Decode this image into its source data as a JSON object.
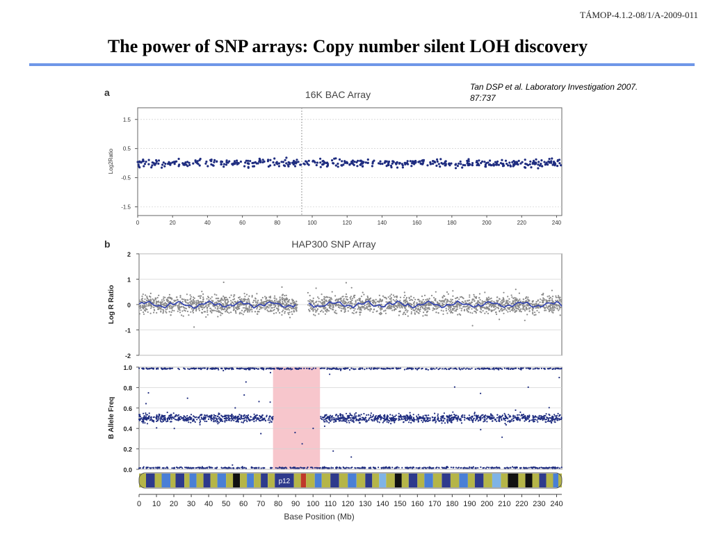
{
  "header": {
    "slide_id": "TÁMOP-4.1.2-08/1/A-2009-011",
    "title": "The power of SNP arrays: Copy number silent LOH discovery"
  },
  "citation": {
    "line1": "Tan DSP et al. Laboratory Investigation 2007.",
    "line2": "87:737"
  },
  "colors": {
    "title_rule": "#6f97e8",
    "points_blue": "#1f2d80",
    "points_gray": "#8a8a8a",
    "trend_blue": "#2e3fb0",
    "loh_highlight": "#f7c6cc"
  },
  "chart_data": [
    {
      "panel": "a",
      "type": "scatter",
      "title": "16K BAC Array",
      "ylabel": "Log2Ratio",
      "xlabel": "",
      "xlim": [
        0,
        243
      ],
      "ylim": [
        -1.8,
        1.9
      ],
      "xticks": [
        0,
        20,
        40,
        60,
        80,
        100,
        120,
        140,
        160,
        180,
        200,
        220,
        240
      ],
      "yticks": [
        1.5,
        0.5,
        -0.5,
        -1.5
      ],
      "ytick_labels": [
        "1.5",
        "0.5",
        "-0.5",
        "-1.5"
      ],
      "grid": true,
      "centromere_marker_mb": 94,
      "series": [
        {
          "values_summary": "log2 ratio of BAC clones, flat around 0",
          "mean": 0.0,
          "spread": 0.07,
          "x_start": 0,
          "x_end": 243,
          "n_points": 480,
          "gap": []
        }
      ]
    },
    {
      "panel": "b",
      "type": "scatter",
      "title": "HAP300 SNP Array",
      "ylabel": "Log R Ratio",
      "xlabel": "",
      "xlim": [
        0,
        243
      ],
      "ylim": [
        -2,
        2
      ],
      "yticks": [
        2,
        1,
        0,
        -1,
        -2
      ],
      "ytick_labels": [
        "2",
        "1",
        "0",
        "-1",
        "-2"
      ],
      "grid": true,
      "series": [
        {
          "values_summary": "SNP log R ratio around 0 with smoothed mean line",
          "mean": 0.0,
          "spread": 0.18,
          "x_start": 0,
          "x_end": 243,
          "n_points": 2600,
          "gap": [
            91,
            97
          ]
        }
      ]
    },
    {
      "panel": "b",
      "type": "scatter",
      "ylabel": "B Allele Freq",
      "xlabel": "Base Position (Mb)",
      "xlim": [
        0,
        243
      ],
      "ylim": [
        0,
        1.0
      ],
      "yticks": [
        1.0,
        0.8,
        0.6,
        0.4,
        0.2,
        0.0
      ],
      "ytick_labels": [
        "1.0",
        "0.8",
        "0.6",
        "0.4",
        "0.2",
        "0.0"
      ],
      "xticks": [
        0,
        10,
        20,
        30,
        40,
        50,
        60,
        70,
        80,
        90,
        100,
        110,
        120,
        130,
        140,
        150,
        160,
        170,
        180,
        190,
        200,
        210,
        220,
        230,
        240
      ],
      "grid": true,
      "loh_region_mb": [
        77,
        104
      ],
      "series": [
        {
          "name": "",
          "values_summary": "heterozygous band",
          "level": 0.5,
          "spread": 0.02,
          "absent_in": [
            77,
            104
          ]
        },
        {
          "name": "",
          "values_summary": "homozygous AA",
          "level": 0.0,
          "spread": 0.01
        },
        {
          "name": "",
          "values_summary": "homozygous BB",
          "level": 1.0,
          "spread": 0.01
        }
      ]
    }
  ],
  "panel_labels": {
    "a": "a",
    "b": "b"
  },
  "ideogram": {
    "band_label": "p12",
    "bands": [
      {
        "from": 0,
        "to": 4,
        "color": "#b5b548"
      },
      {
        "from": 4,
        "to": 9,
        "color": "#2e3a8c"
      },
      {
        "from": 9,
        "to": 13,
        "color": "#b5b548"
      },
      {
        "from": 13,
        "to": 18,
        "color": "#4a7fd6"
      },
      {
        "from": 18,
        "to": 21,
        "color": "#b5b548"
      },
      {
        "from": 21,
        "to": 26,
        "color": "#2e3a8c"
      },
      {
        "from": 26,
        "to": 29,
        "color": "#b5b548"
      },
      {
        "from": 29,
        "to": 33,
        "color": "#4a7fd6"
      },
      {
        "from": 33,
        "to": 37,
        "color": "#b5b548"
      },
      {
        "from": 37,
        "to": 41,
        "color": "#2e3a8c"
      },
      {
        "from": 41,
        "to": 45,
        "color": "#b5b548"
      },
      {
        "from": 45,
        "to": 50,
        "color": "#4a7fd6"
      },
      {
        "from": 50,
        "to": 54,
        "color": "#b5b548"
      },
      {
        "from": 54,
        "to": 58,
        "color": "#111111"
      },
      {
        "from": 58,
        "to": 62,
        "color": "#b5b548"
      },
      {
        "from": 62,
        "to": 66,
        "color": "#4a7fd6"
      },
      {
        "from": 66,
        "to": 70,
        "color": "#b5b548"
      },
      {
        "from": 70,
        "to": 74,
        "color": "#2e3a8c"
      },
      {
        "from": 74,
        "to": 78,
        "color": "#b5b548"
      },
      {
        "from": 78,
        "to": 89,
        "color": "#2e3a8c"
      },
      {
        "from": 89,
        "to": 93,
        "color": "#b5b548"
      },
      {
        "from": 93,
        "to": 96,
        "color": "#c0392b"
      },
      {
        "from": 96,
        "to": 101,
        "color": "#b5b548"
      },
      {
        "from": 101,
        "to": 105,
        "color": "#4a7fd6"
      },
      {
        "from": 105,
        "to": 110,
        "color": "#b5b548"
      },
      {
        "from": 110,
        "to": 115,
        "color": "#2e3a8c"
      },
      {
        "from": 115,
        "to": 120,
        "color": "#b5b548"
      },
      {
        "from": 120,
        "to": 125,
        "color": "#4a7fd6"
      },
      {
        "from": 125,
        "to": 130,
        "color": "#b5b548"
      },
      {
        "from": 130,
        "to": 134,
        "color": "#2e3a8c"
      },
      {
        "from": 134,
        "to": 138,
        "color": "#b5b548"
      },
      {
        "from": 138,
        "to": 142,
        "color": "#7fb3e6"
      },
      {
        "from": 142,
        "to": 147,
        "color": "#b5b548"
      },
      {
        "from": 147,
        "to": 151,
        "color": "#111111"
      },
      {
        "from": 151,
        "to": 155,
        "color": "#b5b548"
      },
      {
        "from": 155,
        "to": 160,
        "color": "#2e3a8c"
      },
      {
        "from": 160,
        "to": 164,
        "color": "#b5b548"
      },
      {
        "from": 164,
        "to": 169,
        "color": "#4a7fd6"
      },
      {
        "from": 169,
        "to": 174,
        "color": "#b5b548"
      },
      {
        "from": 174,
        "to": 179,
        "color": "#2e3a8c"
      },
      {
        "from": 179,
        "to": 184,
        "color": "#b5b548"
      },
      {
        "from": 184,
        "to": 189,
        "color": "#4a7fd6"
      },
      {
        "from": 189,
        "to": 193,
        "color": "#b5b548"
      },
      {
        "from": 193,
        "to": 198,
        "color": "#2e3a8c"
      },
      {
        "from": 198,
        "to": 203,
        "color": "#b5b548"
      },
      {
        "from": 203,
        "to": 208,
        "color": "#7fb3e6"
      },
      {
        "from": 208,
        "to": 212,
        "color": "#b5b548"
      },
      {
        "from": 212,
        "to": 218,
        "color": "#111111"
      },
      {
        "from": 218,
        "to": 222,
        "color": "#b5b548"
      },
      {
        "from": 222,
        "to": 226,
        "color": "#111111"
      },
      {
        "from": 226,
        "to": 230,
        "color": "#b5b548"
      },
      {
        "from": 230,
        "to": 234,
        "color": "#2e3a8c"
      },
      {
        "from": 234,
        "to": 238,
        "color": "#b5b548"
      },
      {
        "from": 238,
        "to": 241,
        "color": "#4a7fd6"
      },
      {
        "from": 241,
        "to": 243,
        "color": "#b5b548"
      }
    ]
  }
}
